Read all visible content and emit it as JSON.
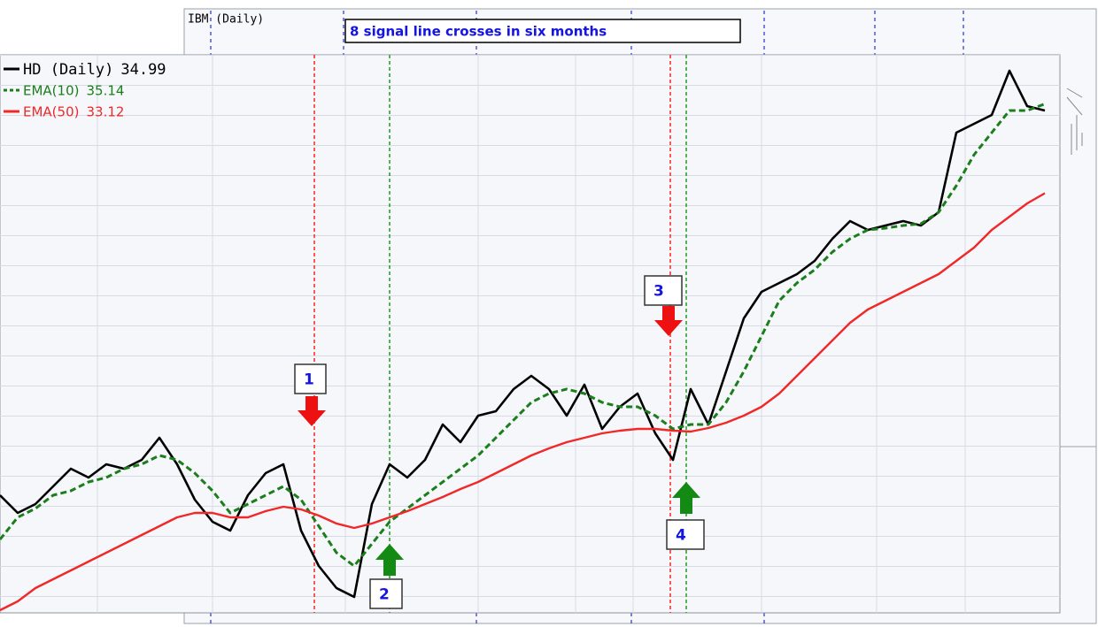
{
  "chart_data": {
    "type": "line",
    "background_title": "IBM (Daily)",
    "annotation": "8 signal line crosses in six months",
    "signals": [
      "1",
      "2",
      "3",
      "4"
    ],
    "ylim": [
      23.65,
      36.25
    ],
    "grid": true,
    "legend": "top-left",
    "series": [
      {
        "name": "HD (Daily)",
        "color": "#000000",
        "values": [
          26.29,
          25.89,
          26.09,
          26.49,
          26.89,
          26.69,
          26.99,
          26.89,
          27.09,
          27.59,
          26.99,
          26.19,
          25.69,
          25.49,
          26.29,
          26.79,
          26.99,
          25.49,
          24.69,
          24.19,
          23.99,
          26.09,
          26.99,
          26.69,
          27.09,
          27.89,
          27.49,
          28.09,
          28.19,
          28.69,
          28.99,
          28.69,
          28.09,
          28.79,
          27.79,
          28.29,
          28.59,
          27.69,
          27.09,
          28.69,
          27.89,
          29.09,
          30.29,
          30.89,
          31.09,
          31.29,
          31.59,
          32.09,
          32.49,
          32.29,
          32.39,
          32.49,
          32.39,
          32.69,
          34.49,
          34.69,
          34.89,
          35.89,
          35.09,
          34.99
        ]
      },
      {
        "name": "EMA(10)",
        "color": "#1a7f1a",
        "values": [
          25.29,
          25.79,
          25.99,
          26.29,
          26.39,
          26.59,
          26.69,
          26.89,
          26.99,
          27.19,
          27.09,
          26.79,
          26.39,
          25.89,
          26.09,
          26.29,
          26.49,
          26.19,
          25.59,
          24.99,
          24.69,
          25.19,
          25.69,
          25.99,
          26.29,
          26.59,
          26.89,
          27.19,
          27.59,
          27.99,
          28.39,
          28.59,
          28.69,
          28.59,
          28.39,
          28.29,
          28.29,
          28.09,
          27.79,
          27.89,
          27.89,
          28.39,
          29.09,
          29.89,
          30.69,
          31.09,
          31.39,
          31.79,
          32.09,
          32.29,
          32.33,
          32.39,
          32.43,
          32.69,
          33.29,
          33.99,
          34.49,
          34.99,
          34.99,
          35.14
        ]
      },
      {
        "name": "EMA(50)",
        "color": "#f02828",
        "values": [
          23.69,
          23.89,
          24.19,
          24.39,
          24.59,
          24.79,
          24.99,
          25.19,
          25.39,
          25.59,
          25.79,
          25.89,
          25.89,
          25.79,
          25.79,
          25.93,
          26.03,
          25.97,
          25.83,
          25.65,
          25.55,
          25.65,
          25.79,
          25.93,
          26.09,
          26.25,
          26.43,
          26.59,
          26.79,
          26.99,
          27.19,
          27.35,
          27.49,
          27.59,
          27.69,
          27.75,
          27.79,
          27.79,
          27.75,
          27.73,
          27.81,
          27.93,
          28.09,
          28.29,
          28.59,
          28.99,
          29.39,
          29.79,
          30.19,
          30.49,
          30.69,
          30.89,
          31.09,
          31.29,
          31.59,
          31.89,
          32.29,
          32.59,
          32.89,
          33.12
        ]
      }
    ]
  }
}
